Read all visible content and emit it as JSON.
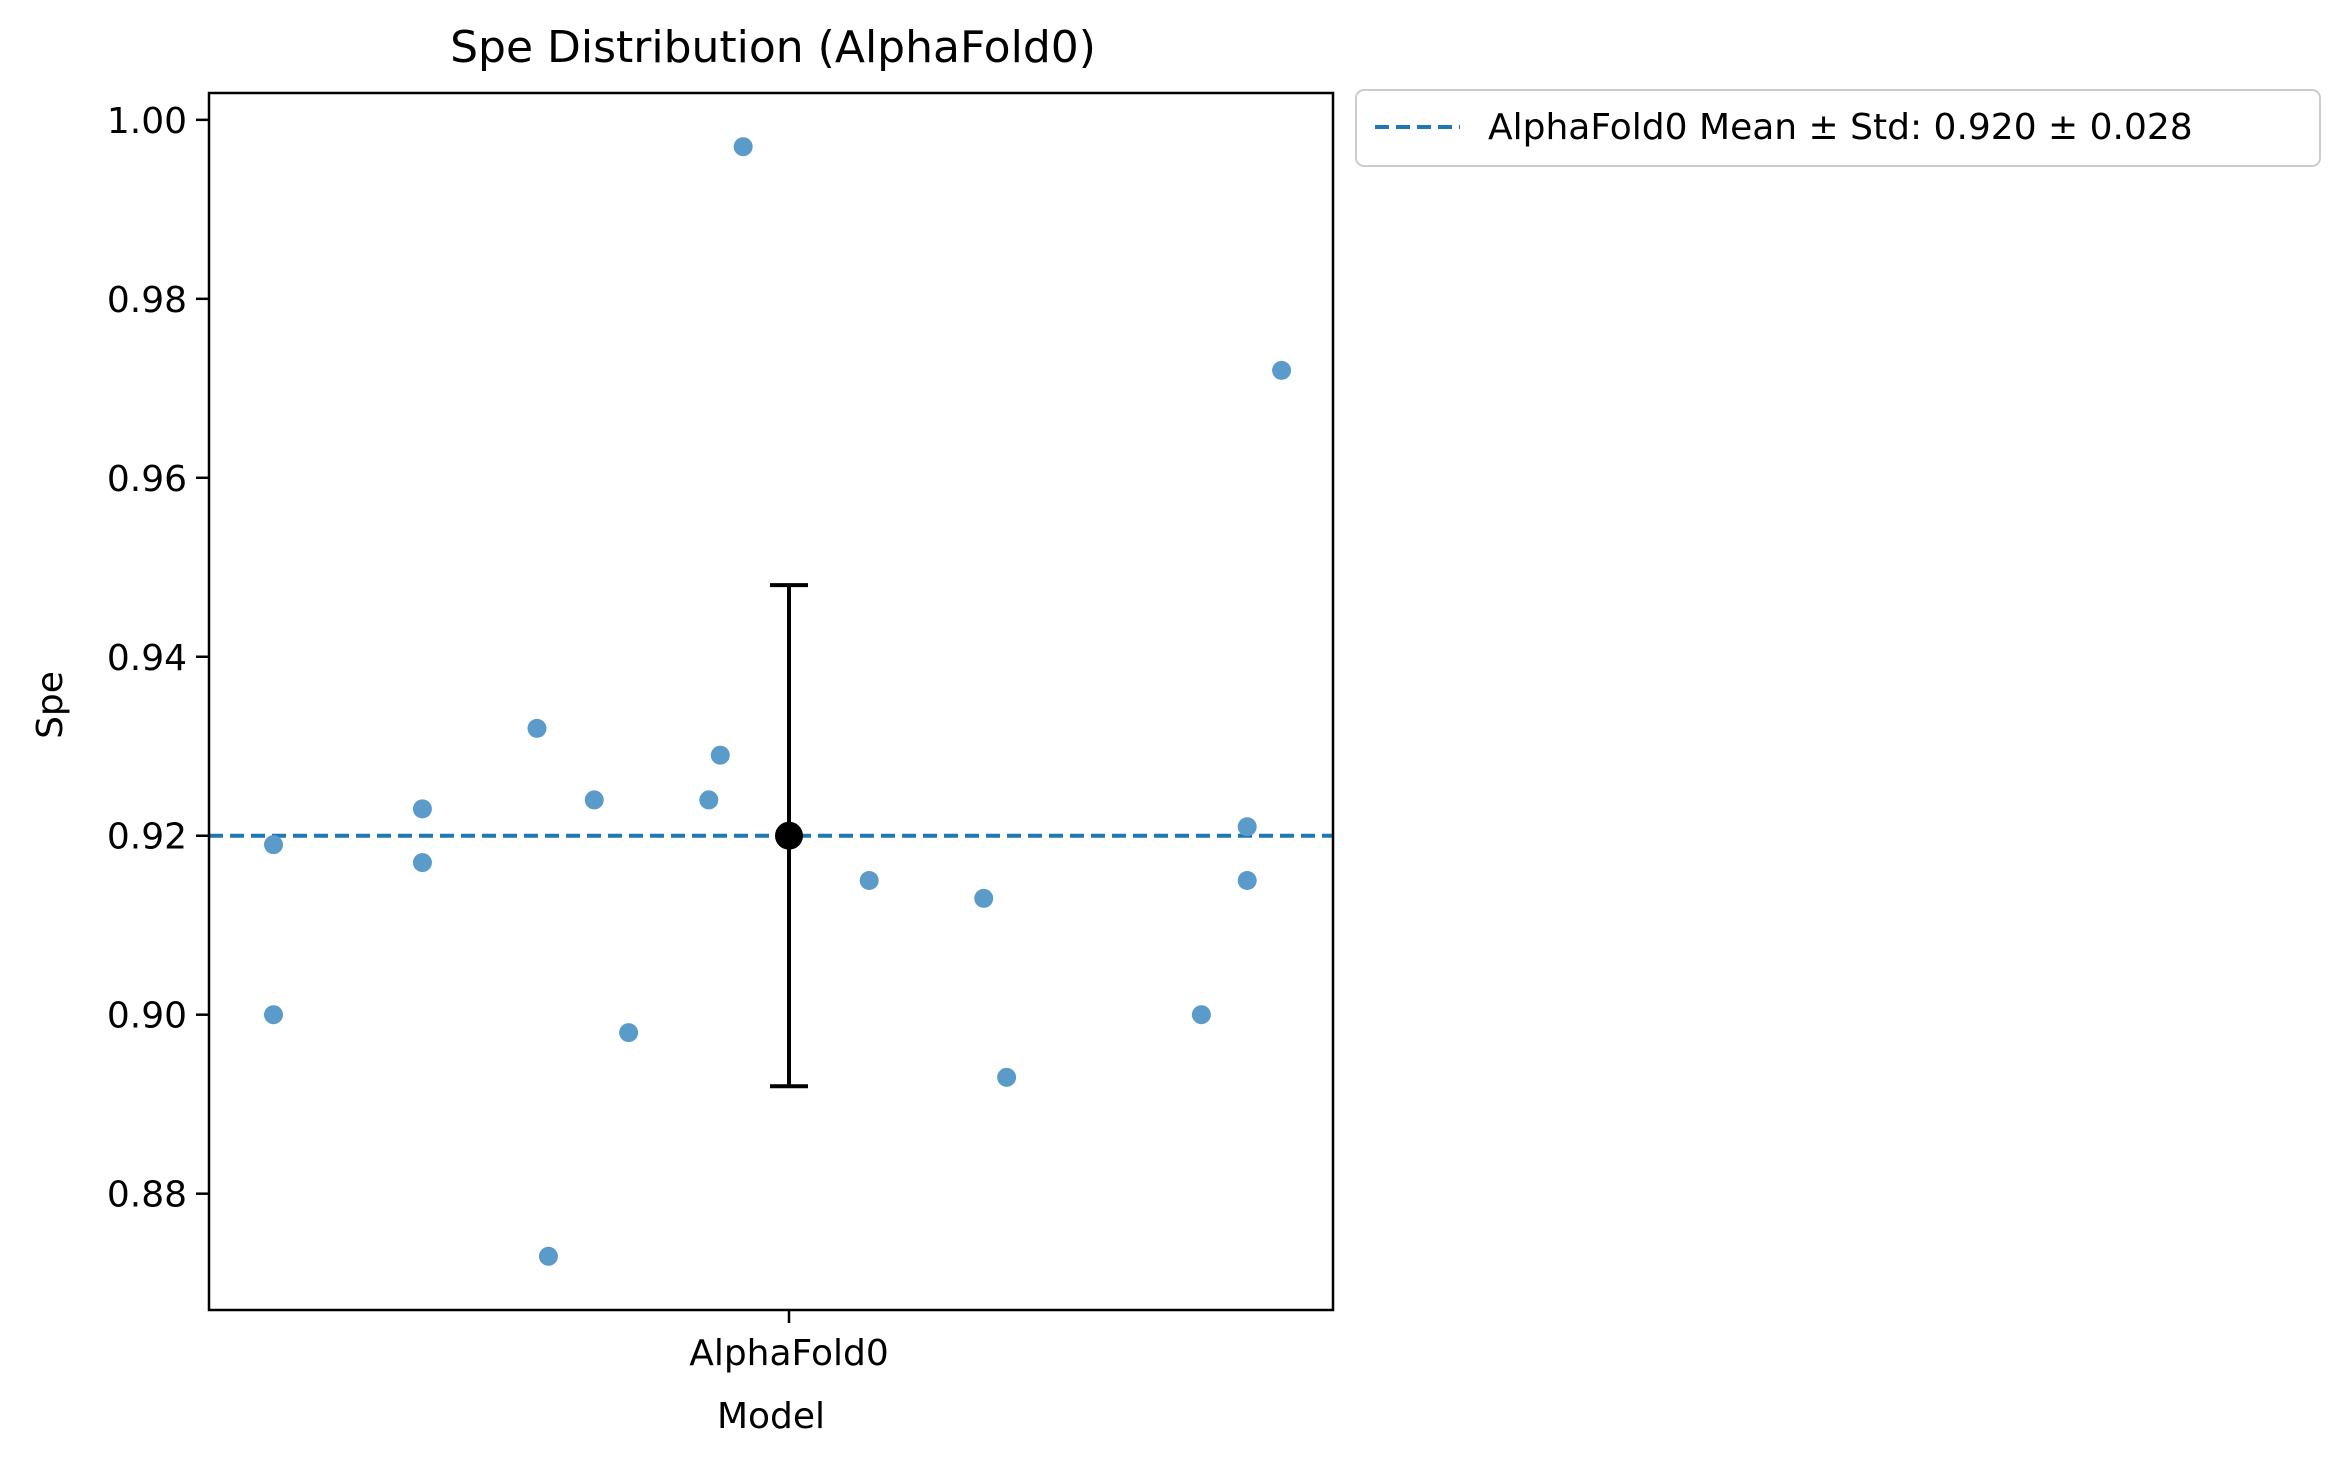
{
  "chart_data": {
    "type": "scatter",
    "title": "Spe Distribution (AlphaFold0)",
    "xlabel": "Model",
    "ylabel": "Spe",
    "categories": [
      "AlphaFold0"
    ],
    "ylim": [
      0.867,
      1.003
    ],
    "yticks": [
      "0.88",
      "0.90",
      "0.92",
      "0.94",
      "0.96",
      "0.98",
      "1.00"
    ],
    "grid": false,
    "legend_position": "outside-top-right",
    "colors": {
      "points": "#5b9bc9",
      "mean_line": "#1f77b4",
      "summary": "#000000"
    },
    "series": [
      {
        "category": "AlphaFold0",
        "x_jitter": [
          -0.45,
          -0.45,
          -0.32,
          -0.32,
          -0.22,
          -0.21,
          -0.17,
          -0.14,
          -0.07,
          -0.06,
          -0.04,
          0.07,
          0.17,
          0.19,
          0.36,
          0.4,
          0.4,
          0.43
        ],
        "values": [
          0.919,
          0.9,
          0.923,
          0.917,
          0.932,
          0.873,
          0.924,
          0.898,
          0.924,
          0.929,
          0.997,
          0.915,
          0.913,
          0.893,
          0.9,
          0.921,
          0.915,
          0.972
        ]
      }
    ],
    "summary": {
      "mean": 0.92,
      "std": 0.028
    },
    "mean_line": {
      "value": 0.92,
      "style": "dashed"
    },
    "legend": [
      "AlphaFold0 Mean ± Std: 0.920 ± 0.028"
    ]
  }
}
